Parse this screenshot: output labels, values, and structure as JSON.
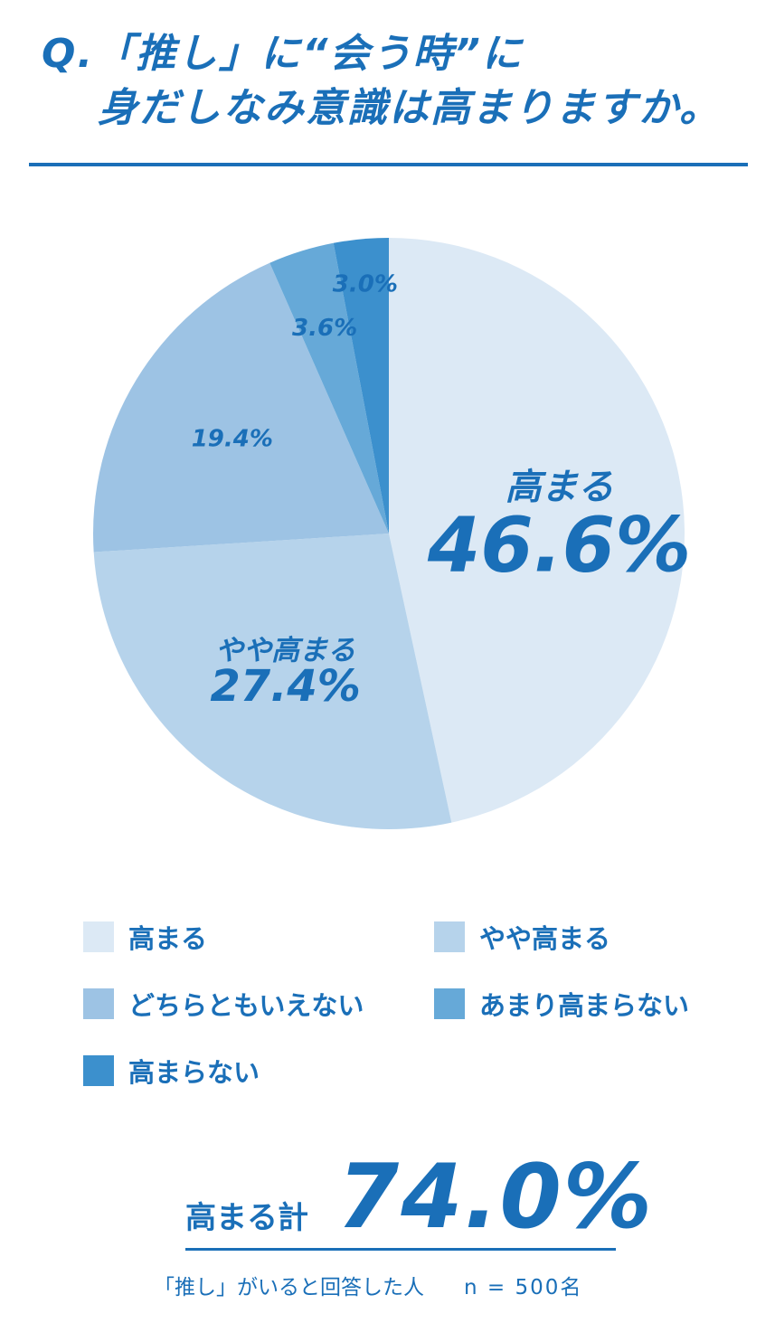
{
  "title": {
    "line1": "Q.「推し」に“会う時”に",
    "line2": "身だしなみ意識は高まりますか。"
  },
  "colors": {
    "primary": "#1a6fb8",
    "slices": [
      "#dce9f5",
      "#b6d3eb",
      "#9dc3e4",
      "#66a9d8",
      "#3c90cd"
    ]
  },
  "chart_data": {
    "type": "pie",
    "categories": [
      "高まる",
      "やや高まる",
      "どちらともいえない",
      "あまり高まらない",
      "高まらない"
    ],
    "values": [
      46.6,
      27.4,
      19.4,
      3.6,
      3.0
    ],
    "value_labels": [
      "46.6%",
      "27.4%",
      "19.4%",
      "3.6%",
      "3.0%"
    ],
    "start": "12 o'clock",
    "direction": "clockwise",
    "legend_position": "bottom"
  },
  "total": {
    "label": "高まる計",
    "value": "74.0%"
  },
  "footnote": {
    "text": "「推し」がいると回答した人",
    "n": "n = 500名"
  }
}
